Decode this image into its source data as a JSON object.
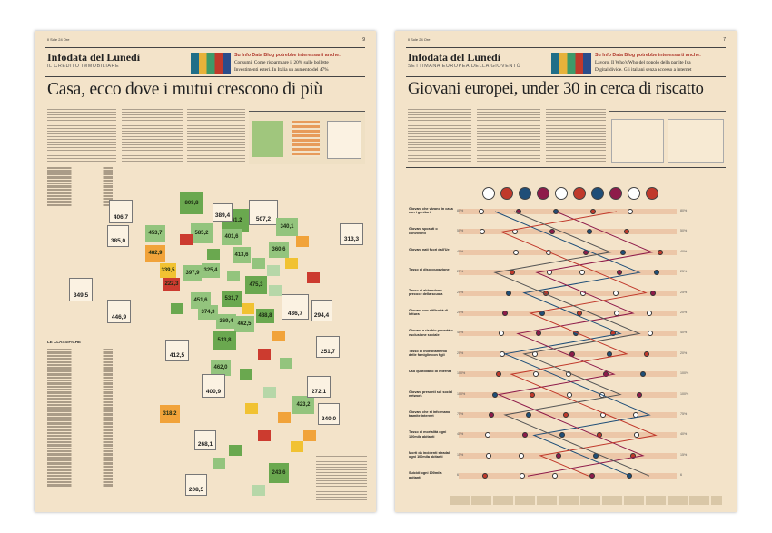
{
  "left_page": {
    "newspaper": "Il Sole 24 Ore",
    "page_number": "9",
    "section_title": "Infodata del Lunedì",
    "section_subtitle": "IL CREDITO IMMOBILIARE",
    "promo": {
      "heading": "Su Info Data Blog potrebbe interessarti anche:",
      "line1": "Consumi. Come risparmiare il 20% sulle bollette",
      "line2": "Investimenti esteri. In Italia un aumento del 47%"
    },
    "headline": "Casa, ecco dove i mutui crescono di più",
    "map_values": [
      "809,8",
      "861,2",
      "585,2",
      "507,2",
      "406,7",
      "453,7",
      "482,9",
      "339,5",
      "222,3",
      "397,9",
      "413,6",
      "451,6",
      "531,7",
      "374,3",
      "475,3",
      "436,7",
      "462,5",
      "488,8",
      "513,8",
      "369,4",
      "462,0",
      "349,5",
      "446,9",
      "412,5",
      "400,9",
      "318,2",
      "423,2",
      "240,0",
      "272,1",
      "251,7",
      "294,4",
      "268,1",
      "208,5",
      "243,6",
      "325,4",
      "401,6",
      "389,4",
      "340,1",
      "313,3",
      "360,6",
      "385,0"
    ],
    "legend_title": "LE CLASSIFICHE"
  },
  "right_page": {
    "newspaper": "Il Sole 24 Ore",
    "page_number": "7",
    "section_title": "Infodata del Lunedì",
    "section_subtitle": "SETTIMANA EUROPEA DELLA GIOVENTÙ",
    "promo": {
      "heading": "Su Info Data Blog potrebbe interessarti anche:",
      "line1": "Lavoro. Il Who's Who del popolo della partite Iva",
      "line2": "Digital divide. Gli italiani senza accesso a internet"
    },
    "headline": "Giovani europei, under 30 in cerca di riscatto",
    "chart_rows": [
      "Giovani che vivono in casa con i genitori",
      "Giovani sposati o conviventi",
      "Giovani nati fuori dall'Ue",
      "Tasso di disoccupazione",
      "Tasso di abbandono precoce della scuola",
      "Giovani con difficoltà di lettura",
      "Giovani a rischio povertà o esclusione sociale",
      "Tasso di indebitamento delle famiglie con figli",
      "Uso quotidiano di internet",
      "Giovani presenti sui social network",
      "Giovani che si informano tramite internet",
      "Tasso di mortalità ogni 100mila abitanti",
      "Morti da incidenti stradali ogni 100mila abitanti",
      "Suicidi ogni 100mila abitanti"
    ],
    "row_pcts": [
      "80%",
      "50%",
      "40%",
      "25%",
      "25%",
      "20%",
      "40%",
      "20%",
      "100%",
      "100%",
      "75%",
      "40%",
      "15%",
      "6"
    ]
  }
}
